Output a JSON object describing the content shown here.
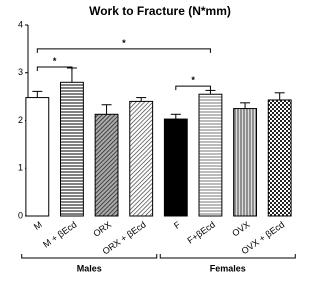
{
  "chart_data": {
    "type": "bar",
    "title": "Work to Fracture (N*mm)",
    "categories": [
      "M",
      "M + βEcd",
      "ORX",
      "ORX + βEcd",
      "F",
      "F+βEcd",
      "OVX",
      "OVX + βEcd"
    ],
    "values": [
      2.48,
      2.8,
      2.13,
      2.4,
      2.03,
      2.55,
      2.25,
      2.43
    ],
    "errors": [
      0.13,
      0.3,
      0.2,
      0.08,
      0.1,
      0.08,
      0.12,
      0.15
    ],
    "patterns": [
      "white",
      "hlines",
      "diag-dark",
      "diag",
      "black",
      "hlines-light",
      "vlines",
      "check"
    ],
    "ylim": [
      0,
      4
    ],
    "yticks": [
      0,
      1,
      2,
      3,
      4
    ],
    "grid": false,
    "groups": [
      {
        "label": "Males",
        "size": 4
      },
      {
        "label": "Females",
        "size": 4
      }
    ],
    "significance": [
      {
        "text": "*",
        "from": 0,
        "to": 1,
        "y": 3.12
      },
      {
        "text": "*",
        "from": 0,
        "to": 5,
        "y": 3.5
      },
      {
        "text": "*",
        "from": 4,
        "to": 5,
        "y": 2.72
      }
    ]
  }
}
